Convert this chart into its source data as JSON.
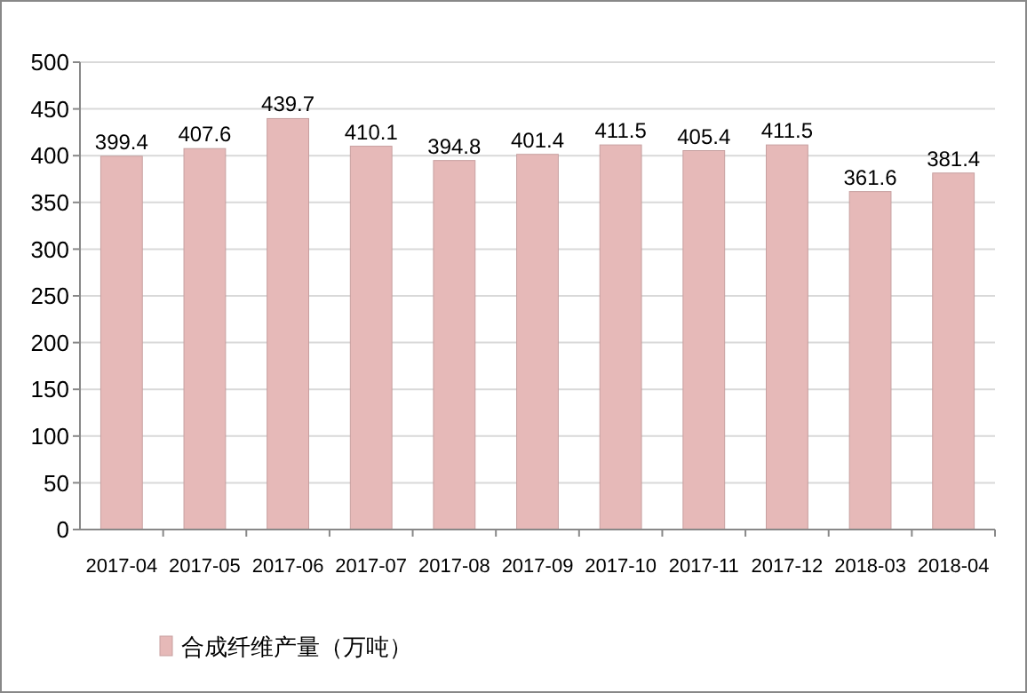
{
  "chart_data": {
    "type": "bar",
    "categories": [
      "2017-04",
      "2017-05",
      "2017-06",
      "2017-07",
      "2017-08",
      "2017-09",
      "2017-10",
      "2017-11",
      "2017-12",
      "2018-03",
      "2018-04"
    ],
    "series": [
      {
        "name": "合成纤维产量（万吨）",
        "color": "#e6b9b8",
        "values": [
          399.4,
          407.6,
          439.7,
          410.1,
          394.8,
          401.4,
          411.5,
          405.4,
          411.5,
          361.6,
          381.4
        ]
      }
    ],
    "ylim": [
      0,
      500
    ],
    "yticks": [
      0,
      50,
      100,
      150,
      200,
      250,
      300,
      350,
      400,
      450,
      500
    ],
    "grid": "y",
    "legend": "bottom left",
    "data_labels": true
  }
}
